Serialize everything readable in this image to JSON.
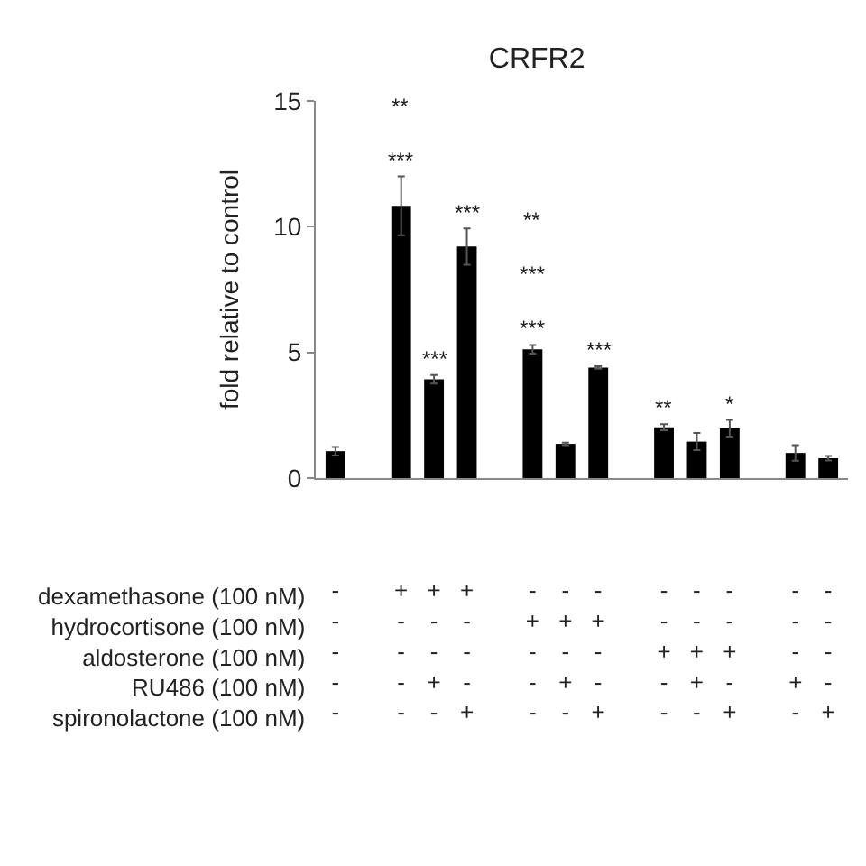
{
  "chart_data": {
    "type": "bar",
    "title": "CRFR2",
    "ylabel": "fold relative to control",
    "categories": [
      "-\n-\n-\n-\n-",
      null,
      "+\n-\n-\n-\n-",
      "+\n-\n-\n+\n-",
      "+\n-\n-\n-\n+",
      null,
      "-\n+\n-\n-\n-",
      "-\n+\n-\n+\n-",
      "-\n+\n-\n-\n+",
      null,
      "-\n-\n+\n-\n-",
      "-\n-\n+\n+\n-",
      "-\n-\n+\n-\n+",
      null,
      "-\n-\n-\n+\n-",
      "-\n-\n-\n-\n+"
    ],
    "values": [
      1.07,
      null,
      10.83,
      3.93,
      9.21,
      null,
      5.12,
      1.36,
      4.4,
      null,
      2.02,
      1.45,
      1.98,
      null,
      1.0,
      0.79
    ],
    "errors": [
      0.17,
      null,
      1.17,
      0.17,
      0.72,
      null,
      0.17,
      0.05,
      0.05,
      null,
      0.12,
      0.34,
      0.33,
      null,
      0.31,
      0.09
    ],
    "color": "#000000",
    "ylim": [
      0,
      15
    ],
    "yticks": [
      0,
      5,
      10,
      15
    ],
    "annotations": [
      "dexamethasone (100 nM)",
      "hydrocortisone (100 nM)",
      "aldosterone (100 nM)",
      "RU486 (100 nM)",
      "spironolactone (100 nM)",
      {
        "text": "***",
        "x": "+\n-\n-\n-\n-",
        "y": 10.83
      },
      "**",
      {
        "text": "***",
        "x": "+\n-\n-\n+\n-",
        "y": 3.93
      },
      {
        "text": "***",
        "x": "+\n-\n-\n-\n+",
        "y": 9.21
      },
      {
        "text": "***",
        "x": "-\n+\n-\n-\n-",
        "y": 5.12
      },
      "***",
      "**",
      {
        "text": "***",
        "x": "-\n+\n-\n-\n+",
        "y": 4.4
      },
      {
        "text": "**",
        "x": "-\n-\n+\n-\n-",
        "y": 2.02
      },
      {
        "text": "*",
        "x": "-\n-\n+\n-\n+",
        "y": 1.98
      }
    ]
  }
}
